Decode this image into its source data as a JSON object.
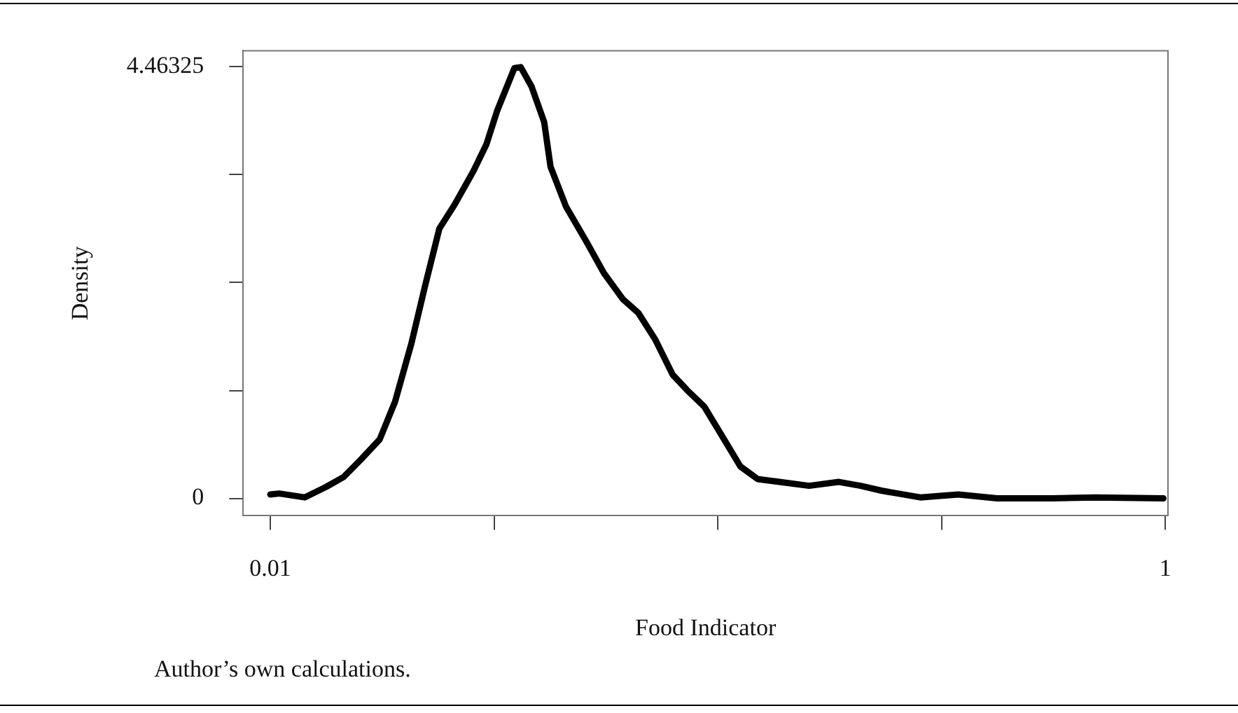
{
  "chart_data": {
    "type": "line",
    "xlabel": "Food Indicator",
    "ylabel": "Density",
    "annotations": [
      "Author’s own calculations."
    ],
    "x": [
      0.01,
      0.02,
      0.048,
      0.072,
      0.091,
      0.11,
      0.131,
      0.148,
      0.166,
      0.181,
      0.197,
      0.214,
      0.235,
      0.249,
      0.261,
      0.28,
      0.287,
      0.299,
      0.313,
      0.32,
      0.337,
      0.36,
      0.379,
      0.4,
      0.417,
      0.436,
      0.455,
      0.471,
      0.49,
      0.512,
      0.53,
      0.549,
      0.573,
      0.606,
      0.639,
      0.663,
      0.686,
      0.729,
      0.771,
      0.814,
      0.875,
      0.923,
      0.998
    ],
    "series": [
      {
        "color": "#000000",
        "values": [
          0.04,
          0.05,
          0.01,
          0.12,
          0.22,
          0.4,
          0.61,
          1.0,
          1.6,
          2.19,
          2.79,
          3.04,
          3.39,
          3.66,
          4.01,
          4.45,
          4.46,
          4.26,
          3.89,
          3.43,
          3.02,
          2.65,
          2.33,
          2.06,
          1.92,
          1.64,
          1.28,
          1.12,
          0.95,
          0.61,
          0.33,
          0.2,
          0.17,
          0.13,
          0.17,
          0.13,
          0.08,
          0.01,
          0.04,
          0.0,
          0.0,
          0.01,
          0.0
        ]
      }
    ],
    "xlim": [
      -0.02,
      1.003
    ],
    "ylim": [
      -0.18,
      4.63
    ],
    "xticks": [
      0.01,
      {
        "value": 0.2575,
        "label": null
      },
      {
        "value": 0.505,
        "label": null
      },
      {
        "value": 0.7525,
        "label": null
      },
      1
    ],
    "yticks": [
      0,
      {
        "value": 1.1158,
        "label": null
      },
      {
        "value": 2.2316,
        "label": null
      },
      {
        "value": 3.3474,
        "label": null
      },
      4.46325
    ],
    "grid": false,
    "legend": false,
    "marker": "none",
    "line_style": "solid"
  }
}
